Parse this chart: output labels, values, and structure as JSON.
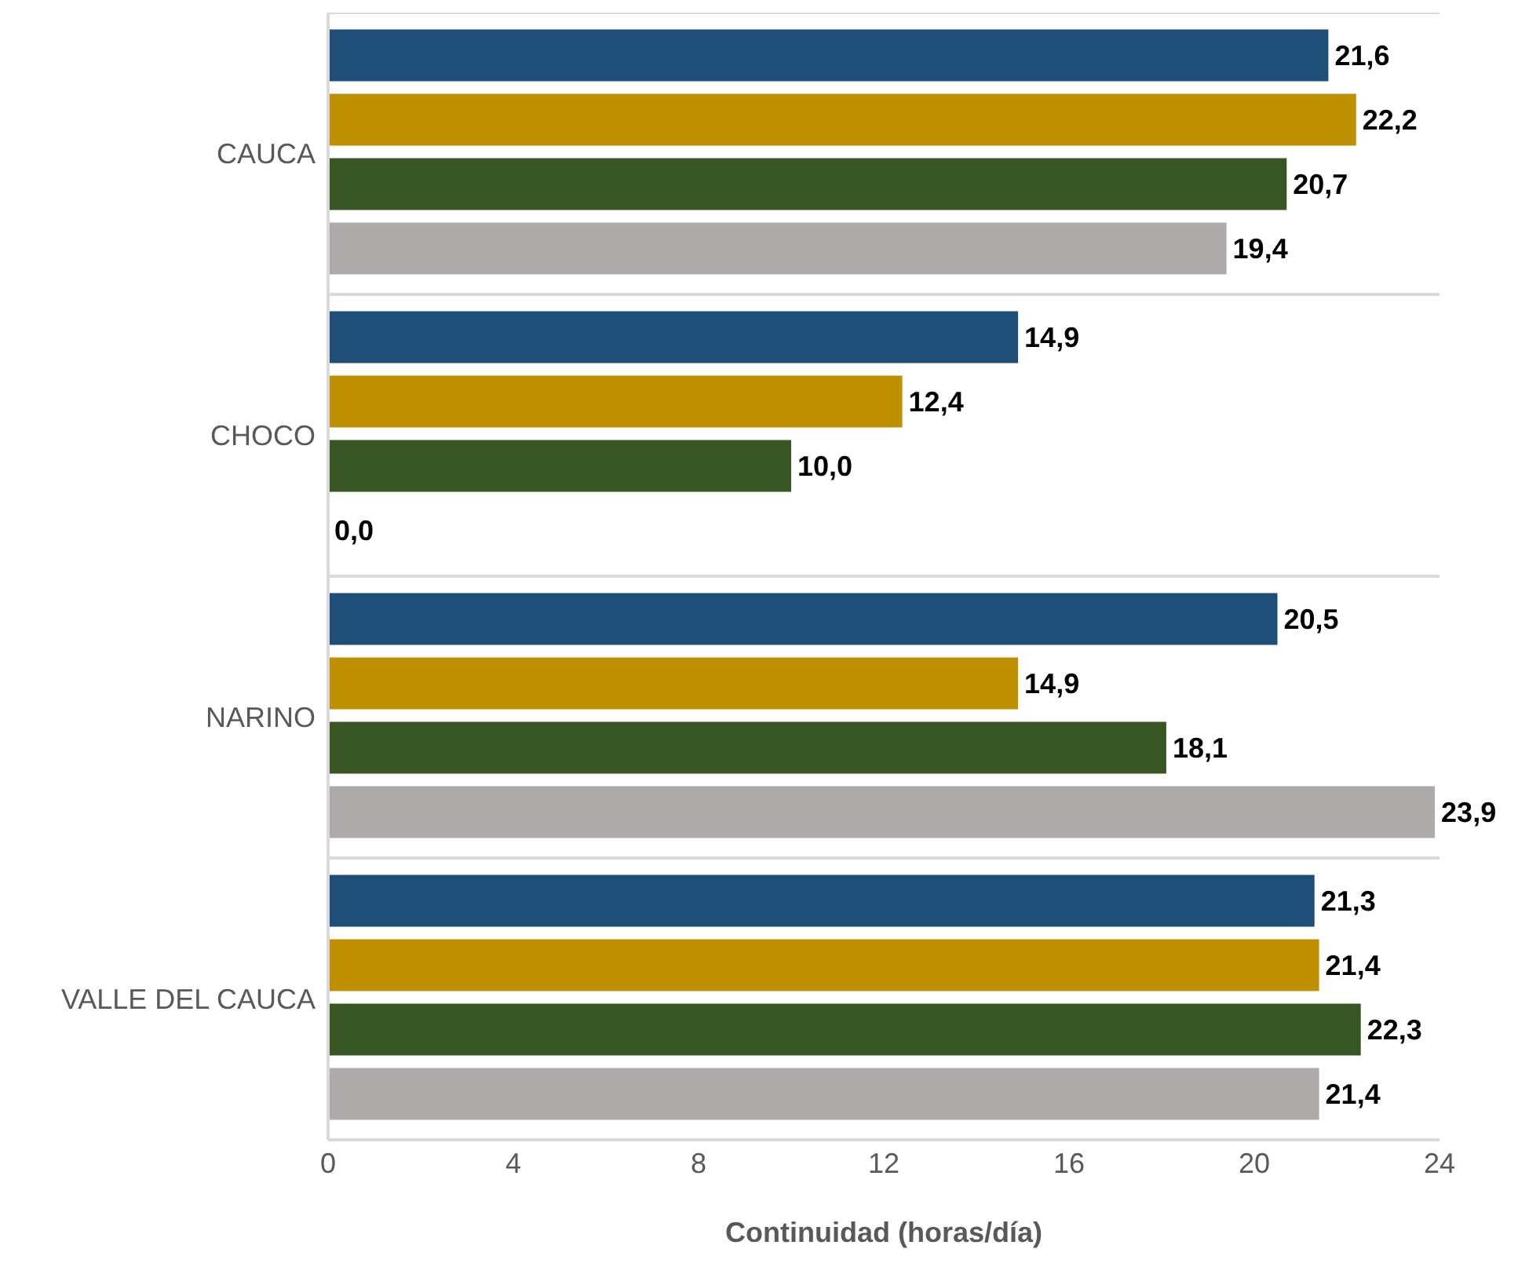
{
  "chart_data": {
    "type": "bar",
    "orientation": "horizontal",
    "categories": [
      "CAUCA",
      "CHOCO",
      "NARINO",
      "VALLE DEL CAUCA"
    ],
    "series": [
      {
        "color": "#1f4e79",
        "values": [
          21.6,
          14.9,
          20.5,
          21.3
        ],
        "value_labels": [
          "21,6",
          "14,9",
          "20,5",
          "21,3"
        ]
      },
      {
        "color": "#bf9000",
        "values": [
          22.2,
          12.4,
          14.9,
          21.4
        ],
        "value_labels": [
          "22,2",
          "12,4",
          "14,9",
          "21,4"
        ]
      },
      {
        "color": "#375623",
        "values": [
          20.7,
          10.0,
          18.1,
          22.3
        ],
        "value_labels": [
          "20,7",
          "10,0",
          "18,1",
          "22,3"
        ]
      },
      {
        "color": "#aeaaaa",
        "values": [
          19.4,
          0.0,
          23.9,
          21.4
        ],
        "value_labels": [
          "19,4",
          "0,0",
          "23,9",
          "21,4"
        ]
      }
    ],
    "xlabel": "Continuidad (horas/día)",
    "xlim": [
      0,
      24
    ],
    "xticks": [
      0,
      4,
      8,
      12,
      16,
      20,
      24
    ],
    "grid": "y",
    "legend": false
  }
}
